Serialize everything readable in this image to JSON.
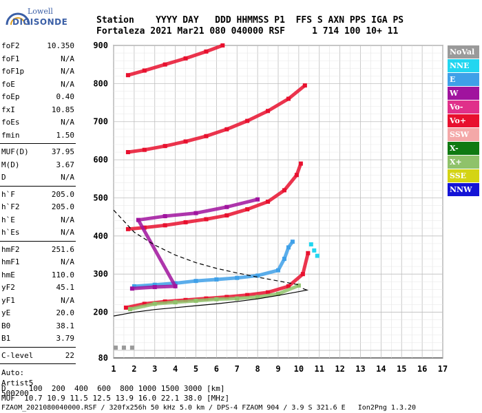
{
  "logo": {
    "line1": "Lowell",
    "line2": "DIGISONDE"
  },
  "header": {
    "labels": "Station    YYYY DAY   DDD HHMMSS P1  FFS S AXN PPS IGA PS",
    "values": "Fortaleza 2021 Mar21 080 040000 RSF     1 714 100 10+ 11"
  },
  "params_group1": [
    {
      "k": "foF2",
      "v": "10.350"
    },
    {
      "k": "foF1",
      "v": "N/A"
    },
    {
      "k": "foF1p",
      "v": "N/A"
    },
    {
      "k": "foE",
      "v": "N/A"
    },
    {
      "k": "foEp",
      "v": "0.40"
    },
    {
      "k": "fxI",
      "v": "10.85"
    },
    {
      "k": "foEs",
      "v": "N/A"
    },
    {
      "k": "fmin",
      "v": "1.50"
    }
  ],
  "params_group2": [
    {
      "k": "MUF(D)",
      "v": "37.95"
    },
    {
      "k": "M(D)",
      "v": "3.67"
    },
    {
      "k": "D",
      "v": "N/A"
    }
  ],
  "params_group3": [
    {
      "k": "h`F",
      "v": "205.0"
    },
    {
      "k": "h`F2",
      "v": "205.0"
    },
    {
      "k": "h`E",
      "v": "N/A"
    },
    {
      "k": "h`Es",
      "v": "N/A"
    }
  ],
  "params_group4": [
    {
      "k": "hmF2",
      "v": "251.6"
    },
    {
      "k": "hmF1",
      "v": "N/A"
    },
    {
      "k": "hmE",
      "v": "110.0"
    },
    {
      "k": "yF2",
      "v": "45.1"
    },
    {
      "k": "yF1",
      "v": "N/A"
    },
    {
      "k": "yE",
      "v": "20.0"
    },
    {
      "k": "B0",
      "v": "38.1"
    },
    {
      "k": "B1",
      "v": "3.79"
    }
  ],
  "params_group5": [
    {
      "k": "C-level",
      "v": "22"
    }
  ],
  "auto": [
    "Auto:",
    "Artist5",
    "500200"
  ],
  "legend": [
    {
      "label": "NoVal",
      "color": "#9a9a9a"
    },
    {
      "label": "NNE",
      "color": "#22d6f0"
    },
    {
      "label": "E",
      "color": "#3fa0e8"
    },
    {
      "label": "W",
      "color": "#a0139e"
    },
    {
      "label": "Vo-",
      "color": "#e0308a"
    },
    {
      "label": "Vo+",
      "color": "#e8102e"
    },
    {
      "label": "SSW",
      "color": "#f4a8a8"
    },
    {
      "label": "X-",
      "color": "#0f7a12"
    },
    {
      "label": "X+",
      "color": "#8fc26a"
    },
    {
      "label": "SSE",
      "color": "#d4d414"
    },
    {
      "label": "NNW",
      "color": "#1414d6"
    }
  ],
  "footer": {
    "line1": "D     100  200  400  600  800 1000 1500 3000 [km]",
    "line2": "MUF  10.7 10.9 11.5 12.5 13.9 16.0 22.1 38.0 [MHz]",
    "line3": "FZAOM_2021080040000.RSF / 320fx256h 50 kHz 5.0 km / DPS-4 FZAOM 904 / 3.9 S 321.6 E   Ion2Png 1.3.20"
  },
  "chart_data": {
    "type": "scatter",
    "x_ticks": [
      "1",
      "2",
      "3",
      "4",
      "5",
      "6",
      "7",
      "8",
      "9",
      "10",
      "11",
      "12",
      "13",
      "14",
      "15",
      "16",
      "17"
    ],
    "y_ticks": [
      "80",
      "200",
      "300",
      "400",
      "500",
      "600",
      "700",
      "800",
      "900"
    ],
    "xlim": [
      1,
      17
    ],
    "ylim": [
      80,
      900
    ],
    "grid": true,
    "series": [
      {
        "color": "#e8102e",
        "points": [
          [
            1.6,
            212
          ],
          [
            2.5,
            222
          ],
          [
            3.5,
            228
          ],
          [
            4.5,
            232
          ],
          [
            5.5,
            236
          ],
          [
            6.5,
            240
          ],
          [
            7.5,
            245
          ],
          [
            8.5,
            252
          ],
          [
            9.5,
            268
          ],
          [
            10.2,
            300
          ],
          [
            10.45,
            355
          ]
        ]
      },
      {
        "color": "#22d6f0",
        "points": [
          [
            10.6,
            378
          ],
          [
            10.75,
            362
          ],
          [
            10.9,
            348
          ]
        ]
      },
      {
        "color": "#3fa0e8",
        "points": [
          [
            2,
            268
          ],
          [
            3,
            272
          ],
          [
            4,
            276
          ],
          [
            5,
            282
          ],
          [
            6,
            286
          ],
          [
            7,
            290
          ],
          [
            8,
            296
          ],
          [
            9,
            310
          ],
          [
            9.3,
            340
          ],
          [
            9.5,
            370
          ],
          [
            9.7,
            385
          ]
        ]
      },
      {
        "color": "#e8102e",
        "points": [
          [
            1.7,
            418
          ],
          [
            2.5,
            422
          ],
          [
            3.5,
            428
          ],
          [
            4.5,
            436
          ],
          [
            5.5,
            444
          ],
          [
            6.5,
            454
          ],
          [
            7.5,
            470
          ],
          [
            8.5,
            490
          ],
          [
            9.3,
            520
          ],
          [
            9.9,
            560
          ],
          [
            10.1,
            590
          ]
        ]
      },
      {
        "color": "#e8102e",
        "points": [
          [
            1.7,
            620
          ],
          [
            2.5,
            626
          ],
          [
            3.5,
            636
          ],
          [
            4.5,
            648
          ],
          [
            5.5,
            662
          ],
          [
            6.5,
            680
          ],
          [
            7.5,
            702
          ],
          [
            8.5,
            728
          ],
          [
            9.5,
            760
          ],
          [
            10.3,
            795
          ]
        ]
      },
      {
        "color": "#e8102e",
        "points": [
          [
            1.7,
            822
          ],
          [
            2.5,
            834
          ],
          [
            3.5,
            850
          ],
          [
            4.5,
            866
          ],
          [
            5.5,
            884
          ],
          [
            6.3,
            900
          ]
        ]
      },
      {
        "color": "#8fc26a",
        "points": [
          [
            1.8,
            208
          ],
          [
            3,
            222
          ],
          [
            4,
            226
          ],
          [
            5,
            230
          ],
          [
            6,
            234
          ],
          [
            7,
            236
          ],
          [
            8,
            240
          ],
          [
            9,
            248
          ],
          [
            10,
            270
          ]
        ]
      },
      {
        "color": "#a0139e",
        "points": [
          [
            1.9,
            262
          ],
          [
            3,
            266
          ],
          [
            4,
            268
          ],
          [
            2.2,
            442
          ],
          [
            3.5,
            452
          ],
          [
            5,
            460
          ],
          [
            6.5,
            476
          ],
          [
            8,
            496
          ]
        ]
      },
      {
        "color": "#9a9a9a",
        "points": [
          [
            1.1,
            107
          ],
          [
            1.5,
            107
          ],
          [
            1.9,
            107
          ]
        ]
      }
    ],
    "curves": [
      {
        "style": "solid",
        "points": [
          [
            1,
            190
          ],
          [
            2,
            200
          ],
          [
            3,
            207
          ],
          [
            4,
            212
          ],
          [
            5,
            217
          ],
          [
            6,
            222
          ],
          [
            7,
            228
          ],
          [
            8,
            235
          ],
          [
            9,
            244
          ],
          [
            10,
            254
          ],
          [
            10.4,
            258
          ],
          [
            10.2,
            262
          ]
        ]
      },
      {
        "style": "dashed",
        "points": [
          [
            1,
            468
          ],
          [
            2,
            410
          ],
          [
            3,
            376
          ],
          [
            4,
            350
          ],
          [
            5,
            330
          ],
          [
            6,
            315
          ],
          [
            7,
            303
          ],
          [
            8,
            292
          ],
          [
            9,
            282
          ],
          [
            10,
            272
          ]
        ]
      }
    ]
  }
}
